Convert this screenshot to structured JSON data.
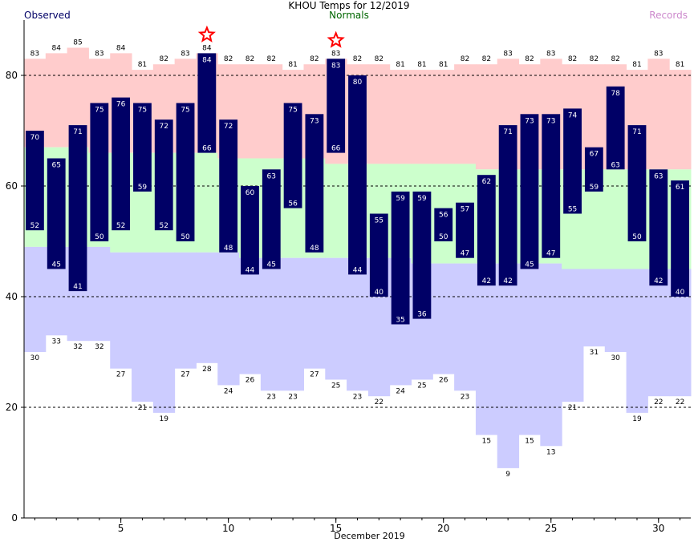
{
  "title": "KHOU Temps for 12/2019",
  "legend": {
    "observed": "Observed",
    "normals": "Normals",
    "records": "Records"
  },
  "colors": {
    "observed": "#000066",
    "normals_text": "#006600",
    "records_text": "#cc88cc",
    "record_high_fill": "#ffcccc",
    "normal_fill": "#ccffcc",
    "record_low_fill": "#ccccff",
    "star": "#ff0000",
    "obs_label_text": "#ffffff"
  },
  "chart_data": {
    "type": "bar",
    "title": "KHOU Temps for 12/2019",
    "xlabel": "December 2019",
    "ylabel": "",
    "ylim": [
      0,
      90
    ],
    "xlim": [
      1,
      31
    ],
    "x_ticks": [
      5,
      10,
      15,
      20,
      25,
      30
    ],
    "y_ticks": [
      0,
      20,
      40,
      60,
      80
    ],
    "gridlines_y": [
      20,
      40,
      60,
      80
    ],
    "days": [
      1,
      2,
      3,
      4,
      5,
      6,
      7,
      8,
      9,
      10,
      11,
      12,
      13,
      14,
      15,
      16,
      17,
      18,
      19,
      20,
      21,
      22,
      23,
      24,
      25,
      26,
      27,
      28,
      29,
      30,
      31
    ],
    "observed_high": [
      70,
      65,
      71,
      75,
      76,
      75,
      72,
      75,
      84,
      72,
      60,
      63,
      75,
      73,
      83,
      80,
      55,
      59,
      59,
      56,
      57,
      62,
      71,
      73,
      73,
      74,
      67,
      78,
      71,
      63,
      61
    ],
    "observed_low": [
      52,
      45,
      41,
      50,
      52,
      59,
      52,
      50,
      66,
      48,
      44,
      45,
      56,
      48,
      66,
      44,
      40,
      35,
      36,
      50,
      47,
      42,
      42,
      45,
      47,
      55,
      59,
      63,
      50,
      42,
      40
    ],
    "record_high": [
      83,
      84,
      85,
      83,
      84,
      81,
      82,
      83,
      84,
      82,
      82,
      82,
      81,
      82,
      83,
      82,
      82,
      81,
      81,
      81,
      82,
      82,
      83,
      82,
      83,
      82,
      82,
      82,
      81,
      83,
      81
    ],
    "record_low": [
      30,
      33,
      32,
      32,
      27,
      21,
      19,
      27,
      28,
      24,
      26,
      23,
      23,
      27,
      25,
      23,
      22,
      24,
      25,
      26,
      23,
      15,
      9,
      15,
      13,
      21,
      31,
      30,
      19,
      22,
      22
    ],
    "normal_high": [
      67,
      67,
      67,
      66,
      66,
      66,
      66,
      66,
      66,
      65,
      65,
      65,
      65,
      65,
      64,
      64,
      64,
      64,
      64,
      64,
      64,
      63,
      63,
      63,
      63,
      63,
      63,
      63,
      63,
      63,
      63
    ],
    "normal_low": [
      49,
      49,
      49,
      49,
      48,
      48,
      48,
      48,
      48,
      48,
      47,
      47,
      47,
      47,
      47,
      47,
      47,
      47,
      46,
      46,
      46,
      46,
      46,
      46,
      46,
      45,
      45,
      45,
      45,
      45,
      45
    ],
    "record_days": [
      9,
      15
    ]
  }
}
